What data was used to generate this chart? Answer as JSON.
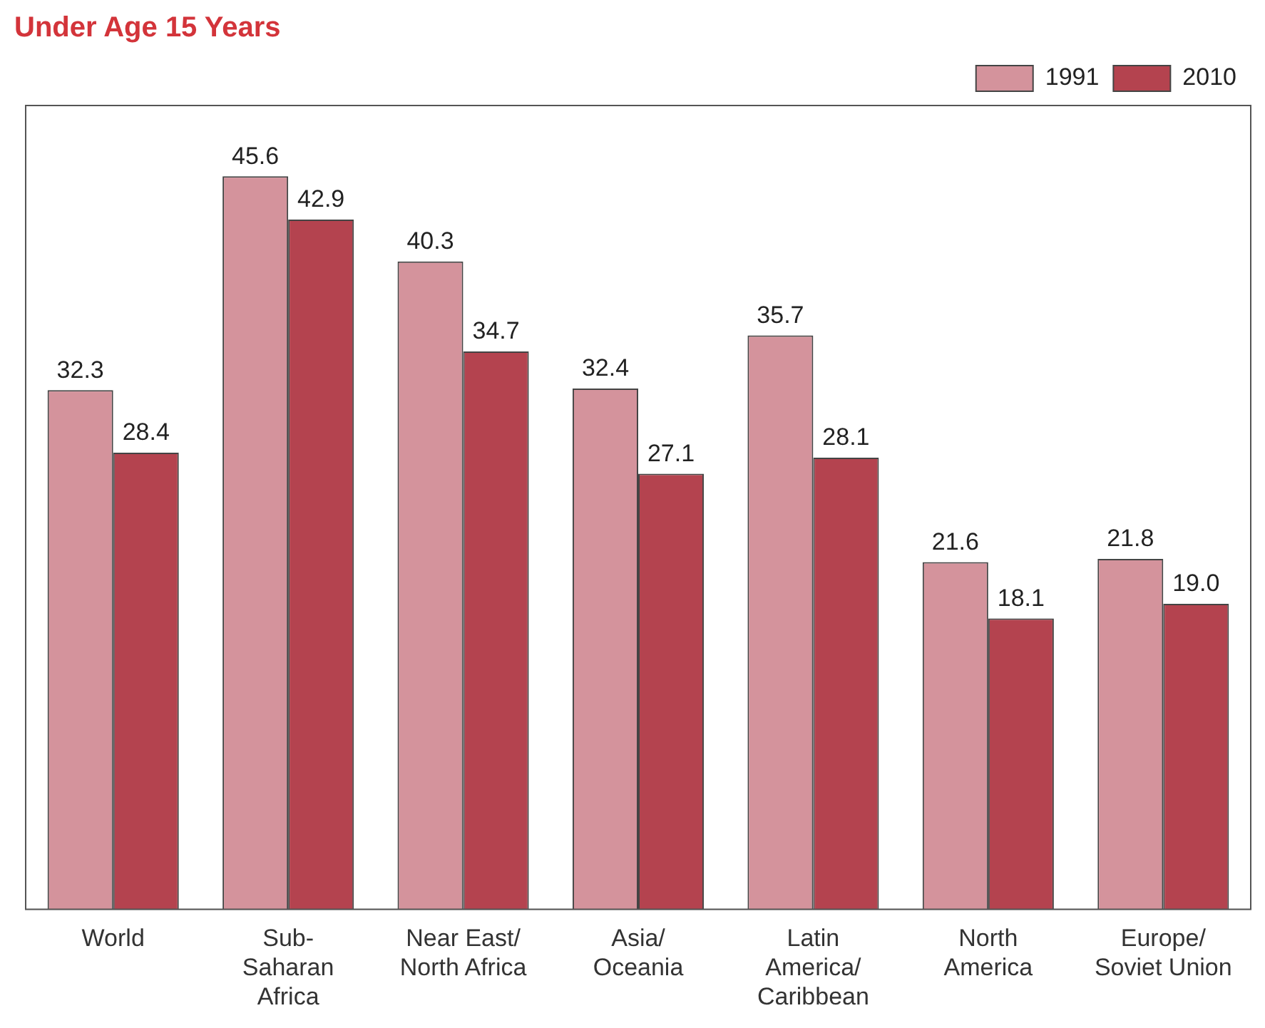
{
  "chart_data": {
    "type": "bar",
    "title": "Under Age 15 Years",
    "categories": [
      "World",
      "Sub-\nSaharan\nAfrica",
      "Near East/\nNorth Africa",
      "Asia/\nOceania",
      "Latin\nAmerica/\nCaribbean",
      "North\nAmerica",
      "Europe/\nSoviet Union"
    ],
    "series": [
      {
        "name": "1991",
        "color": "#d4939c",
        "values": [
          32.3,
          45.6,
          40.3,
          32.4,
          35.7,
          21.6,
          21.8
        ],
        "value_labels": [
          "32.3",
          "45.6",
          "40.3",
          "32.4",
          "35.7",
          "21.6",
          "21.8"
        ]
      },
      {
        "name": "2010",
        "color": "#b4434f",
        "values": [
          28.4,
          42.9,
          34.7,
          27.1,
          28.1,
          18.1,
          19.0
        ],
        "value_labels": [
          "28.4",
          "42.9",
          "34.7",
          "27.1",
          "28.1",
          "18.1",
          "19.0"
        ]
      }
    ],
    "ylim": [
      0,
      50
    ],
    "legend": "top right",
    "grid": false,
    "tick_labels": "x"
  }
}
